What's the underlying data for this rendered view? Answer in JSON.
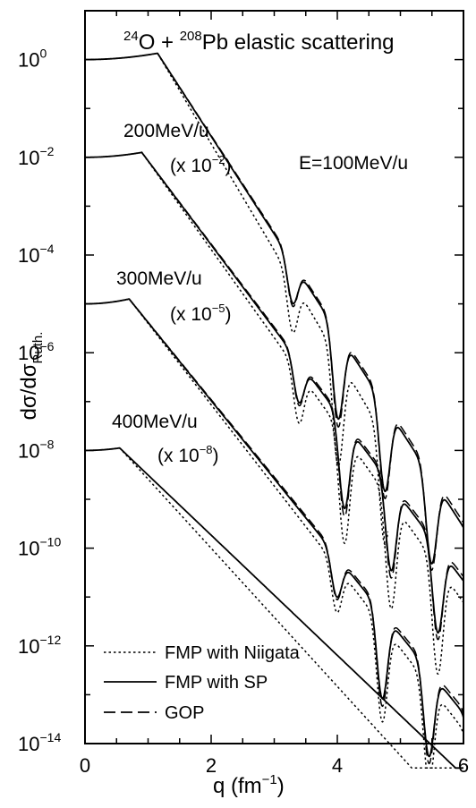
{
  "chart_data": {
    "type": "line",
    "title": "24O + 208Pb elastic scattering",
    "title_parts": {
      "a_mass": "24",
      "a_elem": "O",
      "plus": " + ",
      "b_mass": "208",
      "b_elem": "Pb elastic scattering"
    },
    "xlabel": "q (fm-1)",
    "xlabel_parts": {
      "main": "q (fm",
      "sup": "−1",
      "close": ")"
    },
    "ylabel": "dσ/dσRuth.",
    "ylabel_parts": {
      "main": "dσ/dσ",
      "sub": "Ruth."
    },
    "xlim": [
      0,
      6
    ],
    "ylim_log10": [
      -14,
      1
    ],
    "yscale": "log",
    "x_ticks": [
      0,
      2,
      4,
      6
    ],
    "y_ticks_exp": [
      0,
      -2,
      -4,
      -6,
      -8,
      -10,
      -12,
      -14
    ],
    "y_tick_base": "10",
    "legend_position": "bottom-left",
    "legend": [
      {
        "label": "FMP with Niigata",
        "style": "dotted"
      },
      {
        "label": "FMP with SP",
        "style": "solid"
      },
      {
        "label": "GOP",
        "style": "dashed"
      }
    ],
    "annotations": [
      {
        "text": "E=100MeV/u"
      },
      {
        "text": "200MeV/u"
      },
      {
        "text": "(x 10",
        "exp": "−2",
        "close": ")"
      },
      {
        "text": "300MeV/u"
      },
      {
        "text": "(x 10",
        "exp": "−5",
        "close": ")"
      },
      {
        "text": "400MeV/u"
      },
      {
        "text": "(x 10",
        "exp": "−8",
        "close": ")"
      }
    ],
    "groups": [
      {
        "energy": "E=100MeV/u",
        "scale_exp": 0,
        "q_peak": 1.15,
        "peak_log": 0.13,
        "slope": 2.0,
        "wiggle_start": 2.9,
        "spacing": 0.37,
        "series": [
          {
            "name": "FMP with Niigata",
            "style": "dotted",
            "slope_mod": 1.09,
            "amp": 1.0,
            "x_end": 4.8
          },
          {
            "name": "FMP with SP",
            "style": "solid",
            "slope_mod": 1.0,
            "amp": 0.8,
            "x_end": 6.0
          },
          {
            "name": "GOP",
            "style": "dashed",
            "slope_mod": 0.99,
            "amp": 0.9,
            "x_end": 6.0
          }
        ]
      },
      {
        "energy": "200MeV/u",
        "scale_exp": -2,
        "q_peak": 0.9,
        "peak_log": -1.9,
        "slope": 1.72,
        "wiggle_start": 3.0,
        "spacing": 0.37,
        "series": [
          {
            "name": "FMP with Niigata",
            "style": "dotted",
            "slope_mod": 1.05,
            "amp": 1.0,
            "x_end": 6.0
          },
          {
            "name": "FMP with SP",
            "style": "solid",
            "slope_mod": 1.0,
            "amp": 0.8,
            "x_end": 6.0
          },
          {
            "name": "GOP",
            "style": "dashed",
            "slope_mod": 0.99,
            "amp": 0.9,
            "x_end": 6.0
          }
        ]
      },
      {
        "energy": "300MeV/u",
        "scale_exp": -5,
        "q_peak": 0.7,
        "peak_log": -4.9,
        "slope": 1.6,
        "wiggle_start": 3.6,
        "spacing": 0.37,
        "series": [
          {
            "name": "FMP with Niigata",
            "style": "dotted",
            "slope_mod": 1.04,
            "amp": 0.9,
            "x_end": 6.0
          },
          {
            "name": "FMP with SP",
            "style": "solid",
            "slope_mod": 1.0,
            "amp": 0.8,
            "x_end": 6.0
          },
          {
            "name": "GOP",
            "style": "dashed",
            "slope_mod": 0.99,
            "amp": 0.9,
            "x_end": 6.0
          }
        ]
      },
      {
        "energy": "400MeV/u",
        "scale_exp": -8,
        "q_peak": 0.55,
        "peak_log": -7.95,
        "slope": 1.23,
        "wiggle_start": 99,
        "spacing": 0.37,
        "series": [
          {
            "name": "FMP with Niigata",
            "style": "dotted",
            "slope_mod": 1.15,
            "amp": 0,
            "x_end": 6.0
          },
          {
            "name": "FMP with SP",
            "style": "solid",
            "slope_mod": 1.0,
            "amp": 0,
            "x_end": 6.0
          }
        ]
      }
    ]
  }
}
